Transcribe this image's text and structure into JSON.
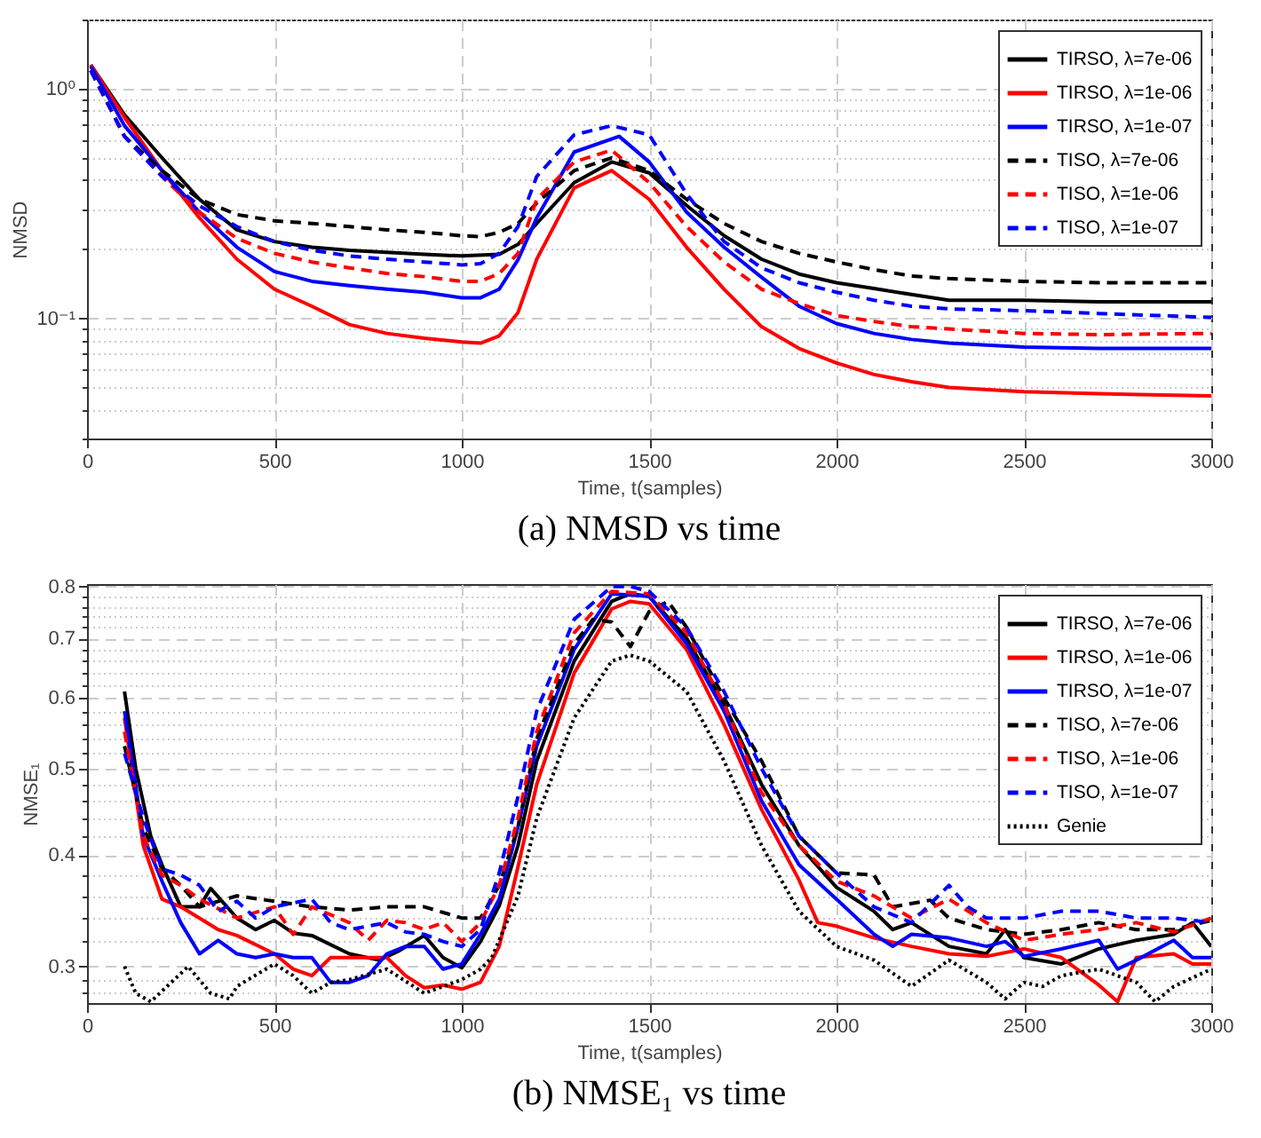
{
  "chart_data": [
    {
      "type": "line",
      "title": "(a) NMSD vs time",
      "xlabel": "Time, t(samples)",
      "ylabel": "NMSD",
      "log": "y",
      "grid": true,
      "legend": "top right",
      "xlim": [
        0,
        3000
      ],
      "xticks": [
        0,
        500,
        1000,
        1500,
        2000,
        2500,
        3000
      ],
      "ylim": [
        0.03,
        2
      ],
      "yticks": [
        {
          "value": 0.03,
          "label": null
        },
        {
          "value": 0.04,
          "label": null
        },
        {
          "value": 0.05,
          "label": null
        },
        {
          "value": 0.06,
          "label": null
        },
        {
          "value": 0.07,
          "label": null
        },
        {
          "value": 0.08,
          "label": null
        },
        {
          "value": 0.09,
          "label": null
        },
        {
          "value": 0.1,
          "label": "10⁻¹"
        },
        {
          "value": 0.2,
          "label": null
        },
        {
          "value": 0.3,
          "label": null
        },
        {
          "value": 0.4,
          "label": null
        },
        {
          "value": 0.5,
          "label": null
        },
        {
          "value": 0.6,
          "label": null
        },
        {
          "value": 0.7,
          "label": null
        },
        {
          "value": 0.8,
          "label": null
        },
        {
          "value": 0.9,
          "label": null
        },
        {
          "value": 1,
          "label": "10⁰"
        },
        {
          "value": 2,
          "label": null
        }
      ],
      "series": [
        {
          "name": "TIRSO, λ=7e-06",
          "color": "#000000",
          "line_style": "solid",
          "x": [
            10,
            100,
            200,
            300,
            400,
            500,
            600,
            700,
            800,
            900,
            1000,
            1100,
            1150,
            1200,
            1300,
            1400,
            1500,
            1600,
            1700,
            1800,
            1900,
            2000,
            2100,
            2200,
            2300,
            2500,
            2700,
            3000
          ],
          "values": [
            1.27,
            0.77,
            0.5,
            0.33,
            0.243,
            0.216,
            0.204,
            0.198,
            0.194,
            0.19,
            0.187,
            0.19,
            0.21,
            0.259,
            0.39,
            0.48,
            0.43,
            0.31,
            0.229,
            0.181,
            0.156,
            0.143,
            0.135,
            0.127,
            0.12,
            0.12,
            0.118,
            0.118
          ]
        },
        {
          "name": "TIRSO, λ=1e-06",
          "color": "#ff0000",
          "line_style": "solid",
          "x": [
            10,
            100,
            200,
            300,
            400,
            500,
            600,
            700,
            800,
            900,
            1000,
            1050,
            1100,
            1150,
            1200,
            1300,
            1400,
            1500,
            1600,
            1700,
            1800,
            1900,
            2000,
            2100,
            2200,
            2300,
            2500,
            2700,
            3000
          ],
          "values": [
            1.27,
            0.75,
            0.44,
            0.274,
            0.181,
            0.134,
            0.113,
            0.094,
            0.086,
            0.082,
            0.079,
            0.078,
            0.084,
            0.106,
            0.181,
            0.37,
            0.44,
            0.33,
            0.204,
            0.134,
            0.092,
            0.074,
            0.064,
            0.057,
            0.053,
            0.05,
            0.048,
            0.047,
            0.046
          ]
        },
        {
          "name": "TIRSO, λ=1e-07",
          "color": "#0000ff",
          "line_style": "solid",
          "x": [
            10,
            100,
            200,
            300,
            400,
            500,
            600,
            700,
            800,
            900,
            1000,
            1050,
            1100,
            1150,
            1200,
            1300,
            1420,
            1500,
            1600,
            1700,
            1800,
            1900,
            2000,
            2100,
            2200,
            2300,
            2500,
            2700,
            3000
          ],
          "values": [
            1.25,
            0.69,
            0.44,
            0.29,
            0.204,
            0.16,
            0.145,
            0.139,
            0.134,
            0.13,
            0.123,
            0.123,
            0.134,
            0.18,
            0.274,
            0.53,
            0.62,
            0.48,
            0.29,
            0.204,
            0.151,
            0.113,
            0.095,
            0.086,
            0.081,
            0.078,
            0.075,
            0.074,
            0.074
          ]
        },
        {
          "name": "TISO, λ=7e-06",
          "color": "#000000",
          "line_style": "dashed",
          "x": [
            10,
            100,
            200,
            300,
            400,
            500,
            600,
            700,
            800,
            900,
            1000,
            1050,
            1100,
            1150,
            1200,
            1300,
            1400,
            1500,
            1600,
            1700,
            1800,
            1900,
            2000,
            2100,
            2200,
            2300,
            2500,
            2700,
            3000
          ],
          "values": [
            1.2,
            0.62,
            0.44,
            0.33,
            0.283,
            0.266,
            0.259,
            0.251,
            0.243,
            0.237,
            0.229,
            0.227,
            0.237,
            0.259,
            0.318,
            0.44,
            0.5,
            0.44,
            0.33,
            0.259,
            0.216,
            0.192,
            0.176,
            0.163,
            0.153,
            0.149,
            0.145,
            0.143,
            0.143
          ]
        },
        {
          "name": "TISO, λ=1e-06",
          "color": "#ff0000",
          "line_style": "dashed",
          "x": [
            10,
            100,
            200,
            300,
            400,
            500,
            600,
            700,
            800,
            900,
            1000,
            1050,
            1100,
            1150,
            1200,
            1300,
            1400,
            1500,
            1600,
            1700,
            1800,
            1900,
            2000,
            2100,
            2200,
            2300,
            2500,
            2700,
            3000
          ],
          "values": [
            1.2,
            0.62,
            0.415,
            0.29,
            0.223,
            0.192,
            0.176,
            0.166,
            0.157,
            0.152,
            0.145,
            0.145,
            0.157,
            0.192,
            0.33,
            0.48,
            0.54,
            0.39,
            0.251,
            0.176,
            0.134,
            0.116,
            0.103,
            0.097,
            0.092,
            0.09,
            0.086,
            0.085,
            0.086
          ]
        },
        {
          "name": "TISO, λ=1e-07",
          "color": "#0000ff",
          "line_style": "dashed",
          "x": [
            10,
            100,
            200,
            300,
            400,
            500,
            600,
            700,
            800,
            900,
            1000,
            1050,
            1100,
            1150,
            1200,
            1300,
            1400,
            1500,
            1600,
            1700,
            1800,
            1900,
            2000,
            2100,
            2200,
            2300,
            2500,
            2700,
            3000
          ],
          "values": [
            1.2,
            0.62,
            0.415,
            0.309,
            0.251,
            0.216,
            0.198,
            0.187,
            0.181,
            0.176,
            0.171,
            0.173,
            0.192,
            0.251,
            0.415,
            0.63,
            0.69,
            0.63,
            0.348,
            0.216,
            0.166,
            0.143,
            0.13,
            0.12,
            0.113,
            0.11,
            0.108,
            0.105,
            0.101
          ]
        }
      ]
    },
    {
      "type": "line",
      "title": "(b) NMSE₁ vs time",
      "xlabel": "Time, t(samples)",
      "ylabel": "NMSE₁",
      "log": "y",
      "grid": true,
      "legend": "top right",
      "xlim": [
        0,
        3000
      ],
      "xticks": [
        0,
        500,
        1000,
        1500,
        2000,
        2500,
        3000
      ],
      "ylim": [
        0.273,
        0.805
      ],
      "yticks": [
        {
          "value": 0.28,
          "label": null
        },
        {
          "value": 0.29,
          "label": null
        },
        0.3,
        {
          "value": 0.32,
          "label": null
        },
        {
          "value": 0.34,
          "label": null
        },
        {
          "value": 0.36,
          "label": null
        },
        {
          "value": 0.38,
          "label": null
        },
        0.4,
        {
          "value": 0.42,
          "label": null
        },
        {
          "value": 0.44,
          "label": null
        },
        {
          "value": 0.46,
          "label": null
        },
        {
          "value": 0.48,
          "label": null
        },
        0.5,
        {
          "value": 0.52,
          "label": null
        },
        {
          "value": 0.54,
          "label": null
        },
        {
          "value": 0.56,
          "label": null
        },
        {
          "value": 0.58,
          "label": null
        },
        0.6,
        {
          "value": 0.62,
          "label": null
        },
        {
          "value": 0.64,
          "label": null
        },
        {
          "value": 0.66,
          "label": null
        },
        {
          "value": 0.68,
          "label": null
        },
        0.7,
        {
          "value": 0.72,
          "label": null
        },
        {
          "value": 0.74,
          "label": null
        },
        {
          "value": 0.76,
          "label": null
        },
        {
          "value": 0.78,
          "label": null
        },
        0.8
      ],
      "series": [
        {
          "name": "TIRSO, λ=7e-06",
          "color": "#000000",
          "line_style": "solid",
          "x": [
            100,
            130,
            170,
            200,
            250,
            300,
            330,
            400,
            450,
            500,
            550,
            600,
            700,
            780,
            830,
            900,
            950,
            1000,
            1050,
            1100,
            1150,
            1200,
            1300,
            1400,
            1450,
            1500,
            1600,
            1700,
            1800,
            1900,
            2000,
            2100,
            2150,
            2200,
            2300,
            2400,
            2450,
            2500,
            2600,
            2700,
            2800,
            2900,
            2950,
            3000
          ],
          "values": [
            0.61,
            0.5,
            0.42,
            0.39,
            0.35,
            0.35,
            0.367,
            0.34,
            0.33,
            0.338,
            0.327,
            0.325,
            0.31,
            0.305,
            0.312,
            0.325,
            0.307,
            0.299,
            0.32,
            0.351,
            0.41,
            0.51,
            0.66,
            0.77,
            0.785,
            0.78,
            0.7,
            0.59,
            0.48,
            0.41,
            0.368,
            0.346,
            0.33,
            0.336,
            0.316,
            0.31,
            0.33,
            0.307,
            0.302,
            0.314,
            0.321,
            0.326,
            0.336,
            0.316
          ]
        },
        {
          "name": "TIRSO, λ=1e-06",
          "color": "#ff0000",
          "line_style": "solid",
          "x": [
            100,
            150,
            200,
            250,
            300,
            350,
            400,
            500,
            550,
            600,
            650,
            700,
            800,
            850,
            900,
            950,
            1000,
            1050,
            1100,
            1150,
            1200,
            1300,
            1400,
            1450,
            1500,
            1600,
            1700,
            1800,
            1900,
            1950,
            2000,
            2100,
            2200,
            2300,
            2400,
            2500,
            2600,
            2700,
            2750,
            2800,
            2900,
            2950,
            3000
          ],
          "values": [
            0.57,
            0.41,
            0.357,
            0.35,
            0.34,
            0.33,
            0.325,
            0.31,
            0.298,
            0.293,
            0.307,
            0.307,
            0.307,
            0.293,
            0.284,
            0.286,
            0.283,
            0.288,
            0.316,
            0.388,
            0.48,
            0.64,
            0.755,
            0.77,
            0.765,
            0.68,
            0.56,
            0.45,
            0.375,
            0.336,
            0.333,
            0.323,
            0.316,
            0.31,
            0.308,
            0.314,
            0.307,
            0.286,
            0.274,
            0.307,
            0.31,
            0.302,
            0.302
          ]
        },
        {
          "name": "TIRSO, λ=1e-07",
          "color": "#0000ff",
          "line_style": "solid",
          "x": [
            100,
            150,
            200,
            250,
            300,
            350,
            400,
            450,
            500,
            550,
            600,
            650,
            700,
            750,
            800,
            850,
            900,
            950,
            1000,
            1050,
            1100,
            1150,
            1200,
            1300,
            1400,
            1500,
            1600,
            1700,
            1800,
            1900,
            2000,
            2100,
            2150,
            2200,
            2300,
            2400,
            2450,
            2500,
            2600,
            2700,
            2750,
            2800,
            2900,
            2950,
            3000
          ],
          "values": [
            0.58,
            0.42,
            0.374,
            0.336,
            0.31,
            0.321,
            0.31,
            0.307,
            0.31,
            0.307,
            0.307,
            0.288,
            0.288,
            0.293,
            0.31,
            0.316,
            0.316,
            0.298,
            0.302,
            0.326,
            0.357,
            0.43,
            0.53,
            0.68,
            0.785,
            0.78,
            0.69,
            0.58,
            0.46,
            0.39,
            0.357,
            0.326,
            0.316,
            0.326,
            0.323,
            0.316,
            0.32,
            0.308,
            0.314,
            0.321,
            0.298,
            0.305,
            0.321,
            0.307,
            0.307
          ]
        },
        {
          "name": "TISO, λ=7e-06",
          "color": "#000000",
          "line_style": "dashed",
          "x": [
            100,
            150,
            200,
            250,
            300,
            400,
            500,
            600,
            700,
            800,
            900,
            1000,
            1050,
            1100,
            1150,
            1200,
            1300,
            1350,
            1400,
            1450,
            1500,
            1550,
            1600,
            1700,
            1800,
            1900,
            2000,
            2100,
            2150,
            2250,
            2300,
            2400,
            2500,
            2600,
            2700,
            2800,
            2900,
            3000
          ],
          "values": [
            0.53,
            0.43,
            0.386,
            0.37,
            0.35,
            0.36,
            0.355,
            0.35,
            0.347,
            0.35,
            0.35,
            0.34,
            0.34,
            0.37,
            0.43,
            0.54,
            0.69,
            0.735,
            0.73,
            0.685,
            0.75,
            0.77,
            0.72,
            0.6,
            0.51,
            0.42,
            0.382,
            0.38,
            0.35,
            0.356,
            0.34,
            0.33,
            0.326,
            0.33,
            0.336,
            0.33,
            0.33,
            0.338
          ]
        },
        {
          "name": "TISO, λ=1e-06",
          "color": "#ff0000",
          "line_style": "dashed",
          "x": [
            100,
            150,
            200,
            250,
            300,
            400,
            500,
            550,
            600,
            700,
            750,
            800,
            850,
            900,
            950,
            1000,
            1050,
            1100,
            1150,
            1200,
            1300,
            1400,
            1500,
            1600,
            1700,
            1800,
            1900,
            2000,
            2100,
            2200,
            2300,
            2400,
            2500,
            2600,
            2700,
            2800,
            2900,
            3000
          ],
          "values": [
            0.55,
            0.42,
            0.38,
            0.37,
            0.357,
            0.34,
            0.35,
            0.326,
            0.35,
            0.336,
            0.321,
            0.338,
            0.336,
            0.33,
            0.336,
            0.32,
            0.336,
            0.37,
            0.44,
            0.55,
            0.71,
            0.79,
            0.785,
            0.71,
            0.59,
            0.47,
            0.41,
            0.374,
            0.36,
            0.34,
            0.357,
            0.336,
            0.321,
            0.326,
            0.33,
            0.336,
            0.328,
            0.34
          ]
        },
        {
          "name": "TISO, λ=1e-07",
          "color": "#0000ff",
          "line_style": "dashed",
          "x": [
            100,
            150,
            200,
            250,
            300,
            350,
            400,
            450,
            500,
            600,
            650,
            700,
            800,
            850,
            900,
            950,
            1000,
            1050,
            1100,
            1150,
            1200,
            1300,
            1400,
            1450,
            1500,
            1600,
            1700,
            1800,
            1900,
            2000,
            2100,
            2200,
            2300,
            2350,
            2400,
            2500,
            2600,
            2700,
            2800,
            2900,
            3000
          ],
          "values": [
            0.52,
            0.44,
            0.386,
            0.38,
            0.37,
            0.346,
            0.355,
            0.34,
            0.35,
            0.357,
            0.336,
            0.33,
            0.336,
            0.328,
            0.326,
            0.32,
            0.316,
            0.33,
            0.382,
            0.465,
            0.58,
            0.735,
            0.8,
            0.8,
            0.79,
            0.72,
            0.61,
            0.5,
            0.42,
            0.382,
            0.35,
            0.336,
            0.37,
            0.35,
            0.34,
            0.34,
            0.346,
            0.346,
            0.34,
            0.34,
            0.336
          ]
        },
        {
          "name": "Genie",
          "color": "#000000",
          "line_style": "dotted",
          "x": [
            100,
            130,
            170,
            270,
            330,
            380,
            400,
            500,
            550,
            600,
            650,
            700,
            800,
            900,
            1000,
            1050,
            1080,
            1150,
            1200,
            1300,
            1400,
            1450,
            1500,
            1600,
            1700,
            1800,
            1900,
            2000,
            2100,
            2200,
            2300,
            2400,
            2450,
            2500,
            2550,
            2600,
            2700,
            2800,
            2850,
            2900,
            3000
          ],
          "values": [
            0.3,
            0.28,
            0.274,
            0.3,
            0.28,
            0.276,
            0.285,
            0.302,
            0.293,
            0.28,
            0.288,
            0.29,
            0.298,
            0.28,
            0.29,
            0.298,
            0.307,
            0.36,
            0.44,
            0.57,
            0.66,
            0.67,
            0.66,
            0.61,
            0.51,
            0.41,
            0.346,
            0.316,
            0.305,
            0.285,
            0.305,
            0.288,
            0.276,
            0.288,
            0.285,
            0.293,
            0.298,
            0.288,
            0.274,
            0.285,
            0.298
          ]
        }
      ]
    }
  ]
}
